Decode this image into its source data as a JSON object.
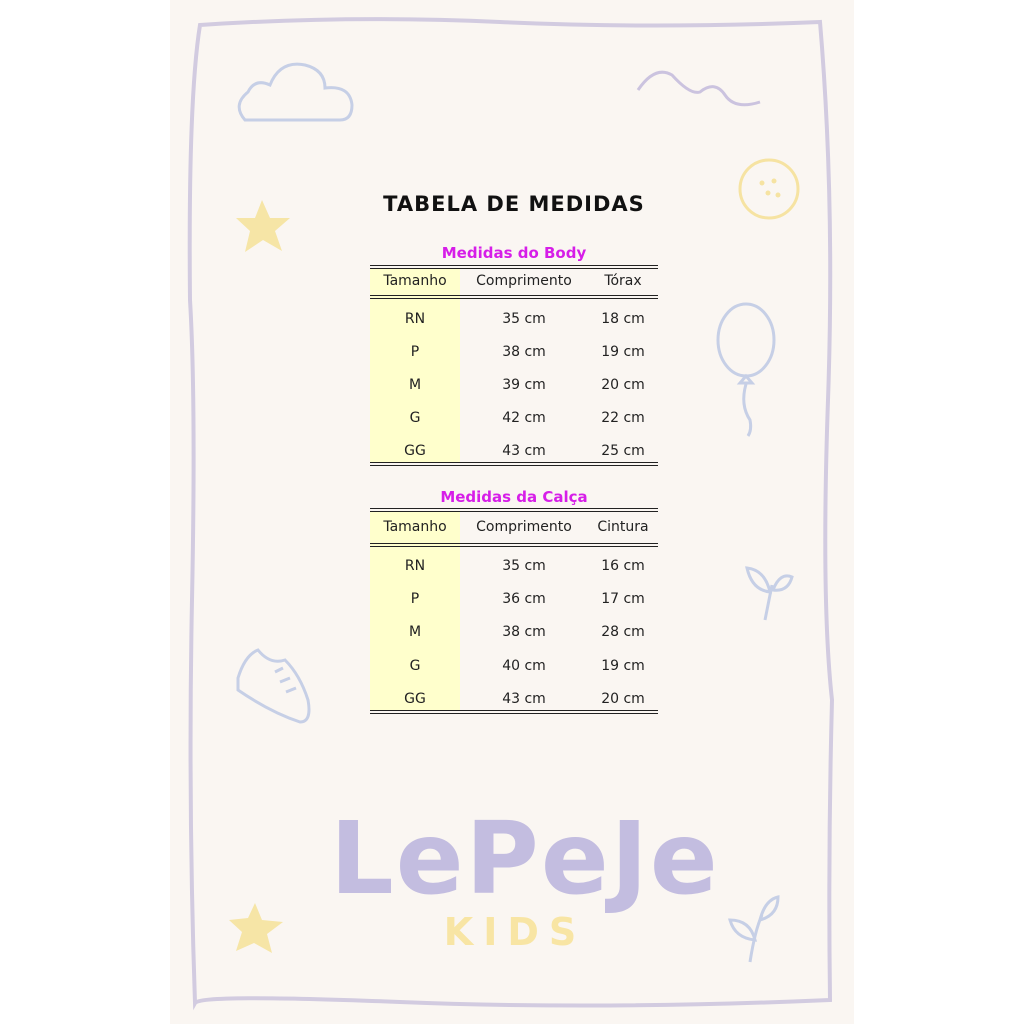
{
  "title": "TABELA DE MEDIDAS",
  "tables": [
    {
      "name": "Medidas do Body",
      "headers": [
        "Tamanho",
        "Comprimento",
        "Tórax"
      ],
      "rows": [
        [
          "RN",
          "35 cm",
          "18 cm"
        ],
        [
          "P",
          "38 cm",
          "19 cm"
        ],
        [
          "M",
          "39 cm",
          "20 cm"
        ],
        [
          "G",
          "42 cm",
          "22 cm"
        ],
        [
          "GG",
          "43 cm",
          "25 cm"
        ]
      ]
    },
    {
      "name": "Medidas da Calça",
      "headers": [
        "Tamanho",
        "Comprimento",
        "Cintura"
      ],
      "rows": [
        [
          "RN",
          "35 cm",
          "16 cm"
        ],
        [
          "P",
          "36 cm",
          "17 cm"
        ],
        [
          "M",
          "38 cm",
          "28 cm"
        ],
        [
          "G",
          "40 cm",
          "19 cm"
        ],
        [
          "GG",
          "43 cm",
          "20 cm"
        ]
      ]
    }
  ],
  "logo": {
    "brand": "LePeJe",
    "sub": "KIDS"
  },
  "colors": {
    "accent": "#d61ee8",
    "highlight": "#ffffcc",
    "border": "#cfc8dd",
    "logo": "#c3bde0",
    "logo_sub": "#f8e5a4"
  },
  "icons": [
    "cloud-icon",
    "squiggle-icon",
    "button-icon",
    "star-icon",
    "balloon-icon",
    "leaf-icon",
    "sneaker-icon"
  ]
}
